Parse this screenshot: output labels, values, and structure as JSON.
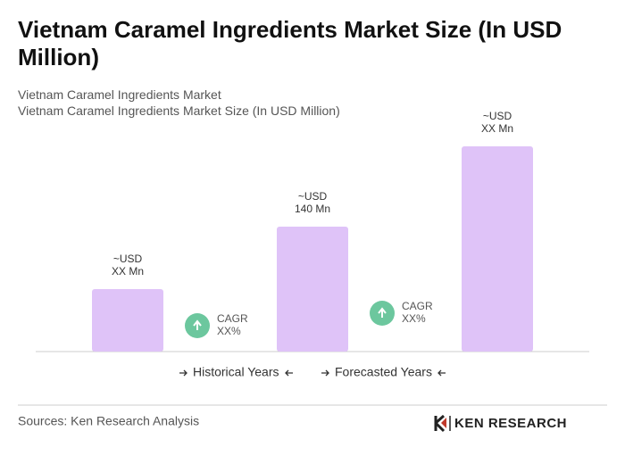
{
  "chart_data": {
    "type": "bar",
    "title": "Vietnam Caramel Ingredients Market Size (In USD Million)",
    "subtitle": [
      "Vietnam Caramel Ingredients Market",
      "Vietnam Caramel Ingredients Market Size (In USD Million)"
    ],
    "values": [
      70,
      140,
      230
    ],
    "value_labels": [
      [
        "~USD",
        "XX Mn"
      ],
      [
        "~USD",
        "140 Mn"
      ],
      [
        "~USD",
        "XX Mn"
      ]
    ],
    "color": "#dfc3f8",
    "annotations": [
      [
        "CAGR",
        "XX%"
      ],
      [
        "CAGR",
        "XX%"
      ]
    ],
    "annotation_color": "#6cc79e",
    "legend": [
      "Historical Years",
      "Forecasted Years"
    ]
  },
  "source": "Sources: Ken Research Analysis",
  "logo": "KEN RESEARCH"
}
